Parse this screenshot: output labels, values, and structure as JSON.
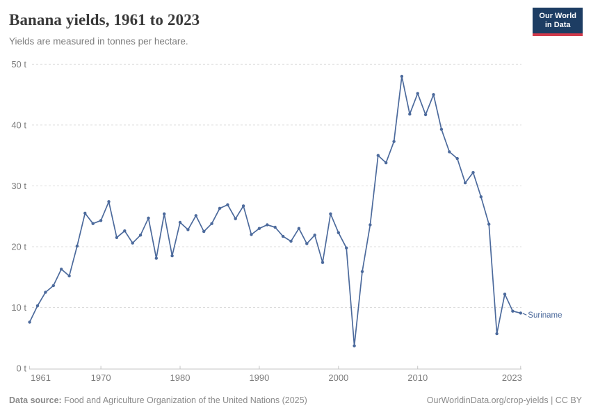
{
  "header": {
    "title": "Banana yields, 1961 to 2023",
    "subtitle": "Yields are measured in tonnes per hectare.",
    "logo": {
      "line1": "Our World",
      "line2": "in Data"
    }
  },
  "chart_data": {
    "type": "line",
    "title": "Banana yields, 1961 to 2023",
    "xlabel": "",
    "ylabel": "tonnes per hectare",
    "unit_suffix": " t",
    "xlim": [
      1961,
      2023
    ],
    "ylim": [
      0,
      50
    ],
    "x_ticks": [
      1961,
      1970,
      1980,
      1990,
      2000,
      2010,
      2023
    ],
    "y_ticks": [
      0,
      10,
      20,
      30,
      40,
      50
    ],
    "grid": "horizontal-dashed",
    "legend_position": "end-of-line-label",
    "series": [
      {
        "name": "Suriname",
        "color": "#4C6A9C",
        "x": [
          1961,
          1962,
          1963,
          1964,
          1965,
          1966,
          1967,
          1968,
          1969,
          1970,
          1971,
          1972,
          1973,
          1974,
          1975,
          1976,
          1977,
          1978,
          1979,
          1980,
          1981,
          1982,
          1983,
          1984,
          1985,
          1986,
          1987,
          1988,
          1989,
          1990,
          1991,
          1992,
          1993,
          1994,
          1995,
          1996,
          1997,
          1998,
          1999,
          2000,
          2001,
          2002,
          2003,
          2004,
          2005,
          2006,
          2007,
          2008,
          2009,
          2010,
          2011,
          2012,
          2013,
          2014,
          2015,
          2016,
          2017,
          2018,
          2019,
          2020,
          2021,
          2022,
          2023
        ],
        "values": [
          7.6,
          10.3,
          12.5,
          13.6,
          16.3,
          15.2,
          20.1,
          25.5,
          23.8,
          24.3,
          27.4,
          21.5,
          22.6,
          20.6,
          21.9,
          24.7,
          18.1,
          25.4,
          18.5,
          24.0,
          22.8,
          25.1,
          22.5,
          23.8,
          26.3,
          26.9,
          24.6,
          26.7,
          22.0,
          23.0,
          23.6,
          23.2,
          21.7,
          20.9,
          23.0,
          20.5,
          21.9,
          17.4,
          25.4,
          22.3,
          19.8,
          3.7,
          15.9,
          23.6,
          35.0,
          33.8,
          37.3,
          48.0,
          41.8,
          45.2,
          41.7,
          45.0,
          39.3,
          35.6,
          34.5,
          30.5,
          32.2,
          28.2,
          23.7,
          5.7,
          12.2,
          9.4,
          9.1
        ]
      }
    ]
  },
  "colors": {
    "line": "#4C6A9C",
    "grid": "#dcdcdc",
    "axis": "#c4c4c4",
    "tick_label": "#7d7d7d",
    "logo_bg": "#1d3d63",
    "logo_accent": "#d23a4b"
  },
  "footer": {
    "source_label": "Data source:",
    "source_text": "Food and Agriculture Organization of the United Nations (2025)",
    "right_text": "OurWorldinData.org/crop-yields | CC BY"
  }
}
